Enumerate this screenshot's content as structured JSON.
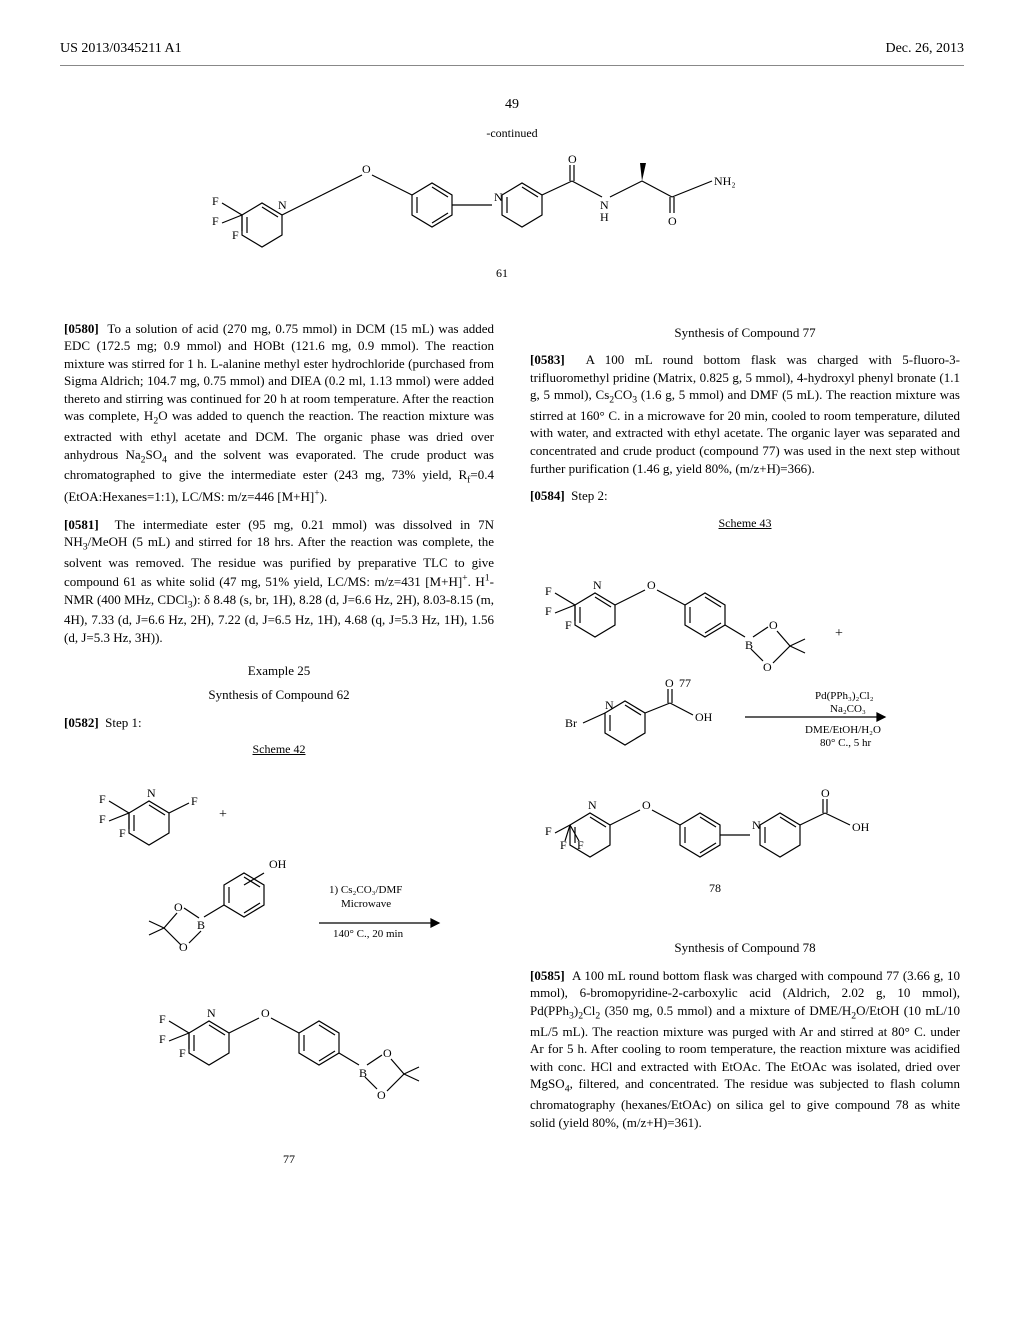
{
  "header": {
    "pub_number": "US 2013/0345211 A1",
    "pub_date": "Dec. 26, 2013"
  },
  "page_number": "49",
  "top_structure": {
    "continued_label": "-continued",
    "compound_number": "61"
  },
  "left_column": {
    "para_0580": {
      "num": "[0580]",
      "text_html": "To a solution of acid (270 mg, 0.75 mmol) in DCM (15 mL) was added EDC (172.5 mg; 0.9 mmol) and HOBt (121.6 mg, 0.9 mmol). The reaction mixture was stirred for 1 h. L-alanine methyl ester hydrochloride (purchased from Sigma Aldrich; 104.7 mg, 0.75 mmol) and DIEA (0.2 ml, 1.13 mmol) were added thereto and stirring was continued for 20 h at room temperature. After the reaction was complete, H<sub>2</sub>O was added to quench the reaction. The reaction mixture was extracted with ethyl acetate and DCM. The organic phase was dried over anhydrous Na<sub>2</sub>SO<sub>4</sub> and the solvent was evaporated. The crude product was chromatographed to give the intermediate ester (243 mg, 73% yield, R<sub>f</sub>=0.4 (EtOA:Hexanes=1:1), LC/MS: m/z=446 [M+H]<sup>+</sup>)."
    },
    "para_0581": {
      "num": "[0581]",
      "text_html": "The intermediate ester (95 mg, 0.21 mmol) was dissolved in 7N NH<sub>3</sub>/MeOH (5 mL) and stirred for 18 hrs. After the reaction was complete, the solvent was removed. The residue was purified by preparative TLC to give compound 61 as white solid (47 mg, 51% yield, LC/MS: m/z=431 [M+H]<sup>+</sup>. H<sup>1</sup>-NMR (400 MHz, CDCl<sub>3</sub>): δ 8.48 (s, br, 1H), 8.28 (d, J=6.6 Hz, 2H), 8.03-8.15 (m, 4H), 7.33 (d, J=6.6 Hz, 2H), 7.22 (d, J=6.5 Hz, 1H), 4.68 (q, J=5.3 Hz, 1H), 1.56 (d, J=5.3 Hz, 3H))."
    },
    "example25": {
      "title": "Example 25",
      "subtitle": "Synthesis of Compound 62"
    },
    "para_0582": {
      "num": "[0582]",
      "text": "Step 1:"
    },
    "scheme42": {
      "label": "Scheme 42",
      "conditions_line1": "1) Cs₂CO₃/DMF",
      "conditions_line2": "Microwave",
      "conditions_line3": "140° C., 20 min",
      "product_number": "77"
    }
  },
  "right_column": {
    "synthesis77_title": "Synthesis of Compound 77",
    "para_0583": {
      "num": "[0583]",
      "text_html": "A 100 mL round bottom flask was charged with 5-fluoro-3-trifluoromethyl pridine (Matrix, 0.825 g, 5 mmol), 4-hydroxyl phenyl bronate (1.1 g, 5 mmol), Cs<sub>2</sub>CO<sub>3</sub> (1.6 g, 5 mmol) and DMF (5 mL). The reaction mixture was stirred at 160° C. in a microwave for 20 min, cooled to room temperature, diluted with water, and extracted with ethyl acetate. The organic layer was separated and concentrated and crude product (compound 77) was used in the next step without further purification (1.46 g, yield 80%, (m/z+H)=366)."
    },
    "para_0584": {
      "num": "[0584]",
      "text": "Step 2:"
    },
    "scheme43": {
      "label": "Scheme 43",
      "compound77_number": "77",
      "conditions_line1": "Pd(PPh₃)₂Cl₂",
      "conditions_line2": "Na₂CO₃",
      "conditions_line3": "DME/EtOH/H₂O",
      "conditions_line4": "80° C., 5 hr",
      "compound78_number": "78"
    },
    "synthesis78_title": "Synthesis of Compound 78",
    "para_0585": {
      "num": "[0585]",
      "text_html": "A 100 mL round bottom flask was charged with compound 77 (3.66 g, 10 mmol), 6-bromopyridine-2-carboxylic acid (Aldrich, 2.02 g, 10 mmol), Pd(PPh<sub>3</sub>)<sub>2</sub>Cl<sub>2</sub> (350 mg, 0.5 mmol) and a mixture of DME/H<sub>2</sub>O/EtOH (10 mL/10 mL/5 mL). The reaction mixture was purged with Ar and stirred at 80° C. under Ar for 5 h. After cooling to room temperature, the reaction mixture was acidified with conc. HCl and extracted with EtOAc. The EtOAc was isolated, dried over MgSO<sub>4</sub>, filtered, and concentrated. The residue was subjected to flash column chromatography (hexanes/EtOAc) on silica gel to give compound 78 as white solid (yield 80%, (m/z+H)=361)."
    }
  },
  "svg_style": {
    "stroke": "#000000",
    "stroke_width": 1.2,
    "font_family": "Times New Roman",
    "font_size": 12
  }
}
